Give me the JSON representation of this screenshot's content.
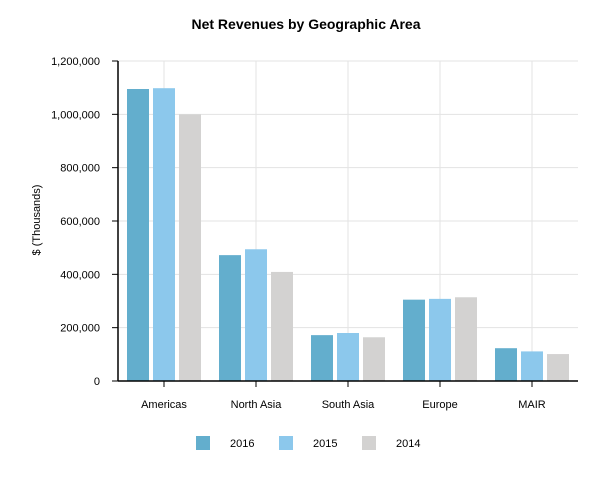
{
  "chart_data": {
    "type": "bar",
    "title": "Net Revenues by Geographic Area",
    "xlabel": "",
    "ylabel": "$ (Thousands)",
    "categories": [
      "Americas",
      "North Asia",
      "South Asia",
      "Europe",
      "MAIR"
    ],
    "series": [
      {
        "name": "2016",
        "color": "#63aecd",
        "values": [
          1095000,
          472000,
          172000,
          305000,
          123000
        ]
      },
      {
        "name": "2015",
        "color": "#8cc8ec",
        "values": [
          1098000,
          494000,
          180000,
          308000,
          111000
        ]
      },
      {
        "name": "2014",
        "color": "#d3d2d1",
        "values": [
          1000000,
          409000,
          164000,
          314000,
          101000
        ]
      }
    ],
    "ylim": [
      0,
      1200000
    ],
    "yticks": [
      0,
      200000,
      400000,
      600000,
      800000,
      1000000,
      1200000
    ],
    "ytick_labels": [
      "0",
      "200,000",
      "400,000",
      "600,000",
      "800,000",
      "1,000,000",
      "1,200,000"
    ],
    "grid": true,
    "legend_position": "bottom"
  }
}
